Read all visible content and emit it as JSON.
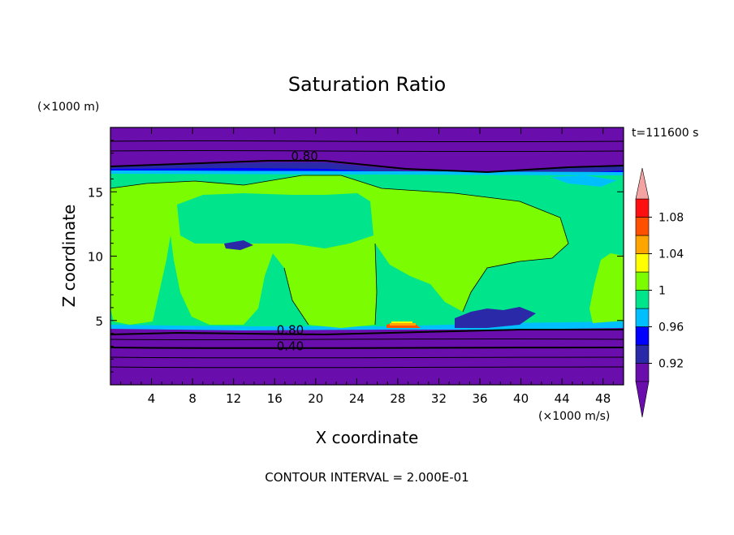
{
  "chart_data": {
    "type": "heatmap",
    "title": "Saturation Ratio",
    "xlabel": "X coordinate",
    "ylabel": "Z coordinate",
    "x_unit": "(×1000 m/s)",
    "y_unit": "(×1000 m)",
    "time_label": "t=111600 s",
    "footer": "CONTOUR INTERVAL = 2.000E-01",
    "xlim": [
      0,
      50
    ],
    "ylim": [
      0,
      20
    ],
    "x_ticks": [
      4,
      8,
      12,
      16,
      20,
      24,
      28,
      32,
      36,
      40,
      44,
      48
    ],
    "y_ticks": [
      5,
      10,
      15
    ],
    "x_tick_labels": [
      "4",
      "8",
      "12",
      "16",
      "20",
      "24",
      "28",
      "32",
      "36",
      "40",
      "44",
      "48"
    ],
    "y_tick_labels": [
      "5",
      "10",
      "15"
    ],
    "contour_labels": [
      {
        "text": "0.80",
        "x": 17.6,
        "y": 17.5
      },
      {
        "text": "0.80",
        "x": 16.2,
        "y": 4.0
      },
      {
        "text": "0.40",
        "x": 16.2,
        "y": 2.75
      }
    ],
    "colorbar": {
      "levels": [
        0.9,
        0.92,
        0.94,
        0.96,
        0.98,
        1.0,
        1.02,
        1.04,
        1.06,
        1.08,
        1.1
      ],
      "colors": [
        "#6a0dad",
        "#2a2aa8",
        "#0000ff",
        "#00bfff",
        "#00e58c",
        "#7cfc00",
        "#ffff00",
        "#ffa500",
        "#ff5000",
        "#ff1010"
      ],
      "under_color": "#6a0dad",
      "over_color": "#f4a3a3",
      "labels": [
        "0.92",
        "0.96",
        "1",
        "1.04",
        "1.08"
      ],
      "label_values": [
        0.92,
        0.96,
        1.0,
        1.04,
        1.08
      ]
    },
    "colors": {
      "purple": "#6a0dad",
      "green": "#7cfc00",
      "aqua": "#00e58c",
      "cyan": "#00bfff",
      "blue": "#0000ff",
      "navy": "#2a2aa8",
      "yellow": "#ffff00",
      "orange": "#ffa500",
      "red": "#ff1010"
    }
  }
}
